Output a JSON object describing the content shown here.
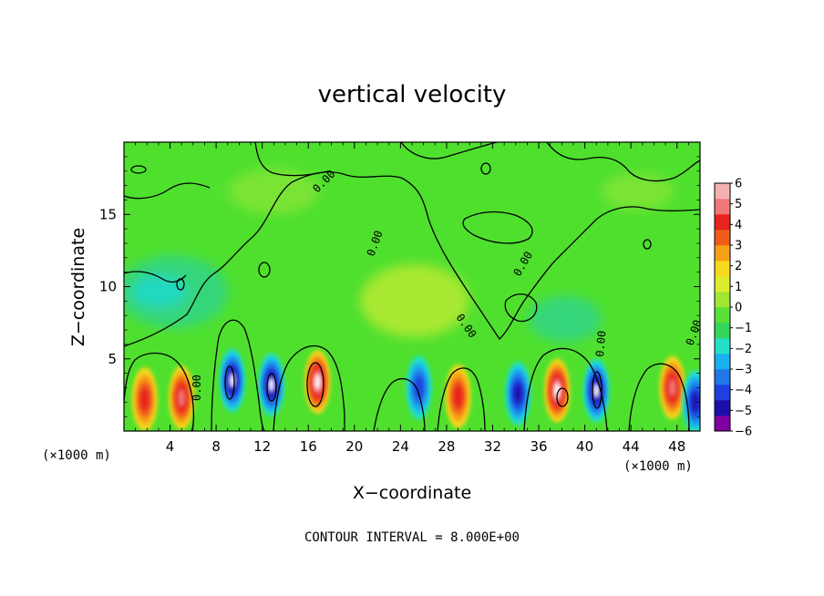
{
  "chart_data": {
    "type": "heatmap",
    "title": "vertical velocity",
    "xlabel": "X−coordinate",
    "ylabel": "Z−coordinate",
    "x_unit": "(×1000 m)",
    "y_unit": "(×1000 m)",
    "xlim": [
      0,
      50
    ],
    "ylim": [
      0,
      20
    ],
    "x_ticks": [
      4,
      8,
      12,
      16,
      20,
      24,
      28,
      32,
      36,
      40,
      44,
      48
    ],
    "y_ticks": [
      5,
      10,
      15
    ],
    "x_tick_labels": [
      "4",
      "8",
      "12",
      "16",
      "20",
      "24",
      "28",
      "32",
      "36",
      "40",
      "44",
      "48"
    ],
    "y_tick_labels": [
      "5",
      "10",
      "15"
    ],
    "footer": "CONTOUR INTERVAL = 8.000E+00",
    "contour_label": "0.00",
    "colorbar": {
      "min": -6,
      "max": 6,
      "tick_labels": [
        "6",
        "5",
        "4",
        "3",
        "2",
        "1",
        "0",
        "−1",
        "−2",
        "−3",
        "−4",
        "−5",
        "−6"
      ],
      "colors": [
        "#7f00a0",
        "#1c0fa8",
        "#1f3fe0",
        "#1f78e6",
        "#1ab0f0",
        "#22e0c8",
        "#35d65a",
        "#5be03a",
        "#a0e632",
        "#dcec2c",
        "#f6d81c",
        "#f6a018",
        "#f05c1a",
        "#e8231e",
        "#f07878",
        "#f4b0b0"
      ]
    },
    "features": [
      {
        "x": 1.8,
        "z": 2.2,
        "w": 3.6
      },
      {
        "x": 5.0,
        "z": 2.3,
        "w": 5.0
      },
      {
        "x": 9.4,
        "z": 3.5,
        "w": -6.0
      },
      {
        "x": 12.8,
        "z": 3.2,
        "w": -6.0
      },
      {
        "x": 16.8,
        "z": 3.4,
        "w": 6.0
      },
      {
        "x": 25.6,
        "z": 3.0,
        "w": -4.0
      },
      {
        "x": 29.0,
        "z": 2.4,
        "w": 4.0
      },
      {
        "x": 34.2,
        "z": 2.6,
        "w": -5.0
      },
      {
        "x": 37.6,
        "z": 2.8,
        "w": 6.0
      },
      {
        "x": 41.0,
        "z": 2.8,
        "w": -6.0
      },
      {
        "x": 47.6,
        "z": 3.0,
        "w": 5.0
      },
      {
        "x": 49.6,
        "z": 2.0,
        "w": -5.0
      }
    ]
  }
}
